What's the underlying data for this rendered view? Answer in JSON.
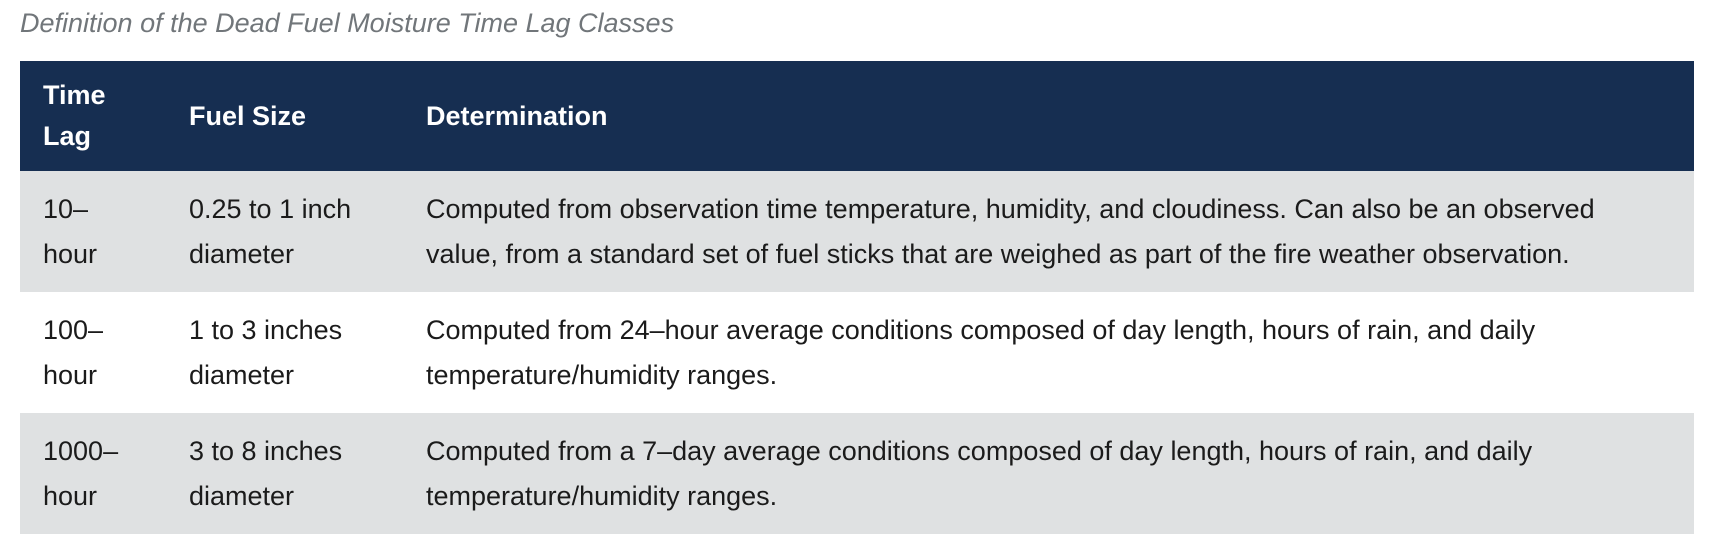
{
  "caption": "Definition of the Dead Fuel Moisture Time Lag Classes",
  "table": {
    "headers": [
      "Time Lag",
      "Fuel Size",
      "Determination"
    ],
    "rows": [
      {
        "time_lag": "10–hour",
        "fuel_size": "0.25 to 1 inch diameter",
        "determination": "Computed from observation time temperature, humidity, and cloudiness. Can also be an observed value, from a standard set of fuel sticks that are weighed as part of the fire weather observation."
      },
      {
        "time_lag": "100–hour",
        "fuel_size": "1 to 3 inches diameter",
        "determination": "Computed from 24–hour average conditions composed of day length, hours of rain, and daily temperature/humidity ranges."
      },
      {
        "time_lag": "1000–hour",
        "fuel_size": "3 to 8 inches diameter",
        "determination": "Computed from a 7–day average conditions composed of day length, hours of rain, and daily temperature/humidity ranges."
      }
    ]
  },
  "colors": {
    "header_background": "#162e51",
    "header_text": "#ffffff",
    "shaded_row": "#dfe1e2",
    "caption_text": "#71767a"
  }
}
